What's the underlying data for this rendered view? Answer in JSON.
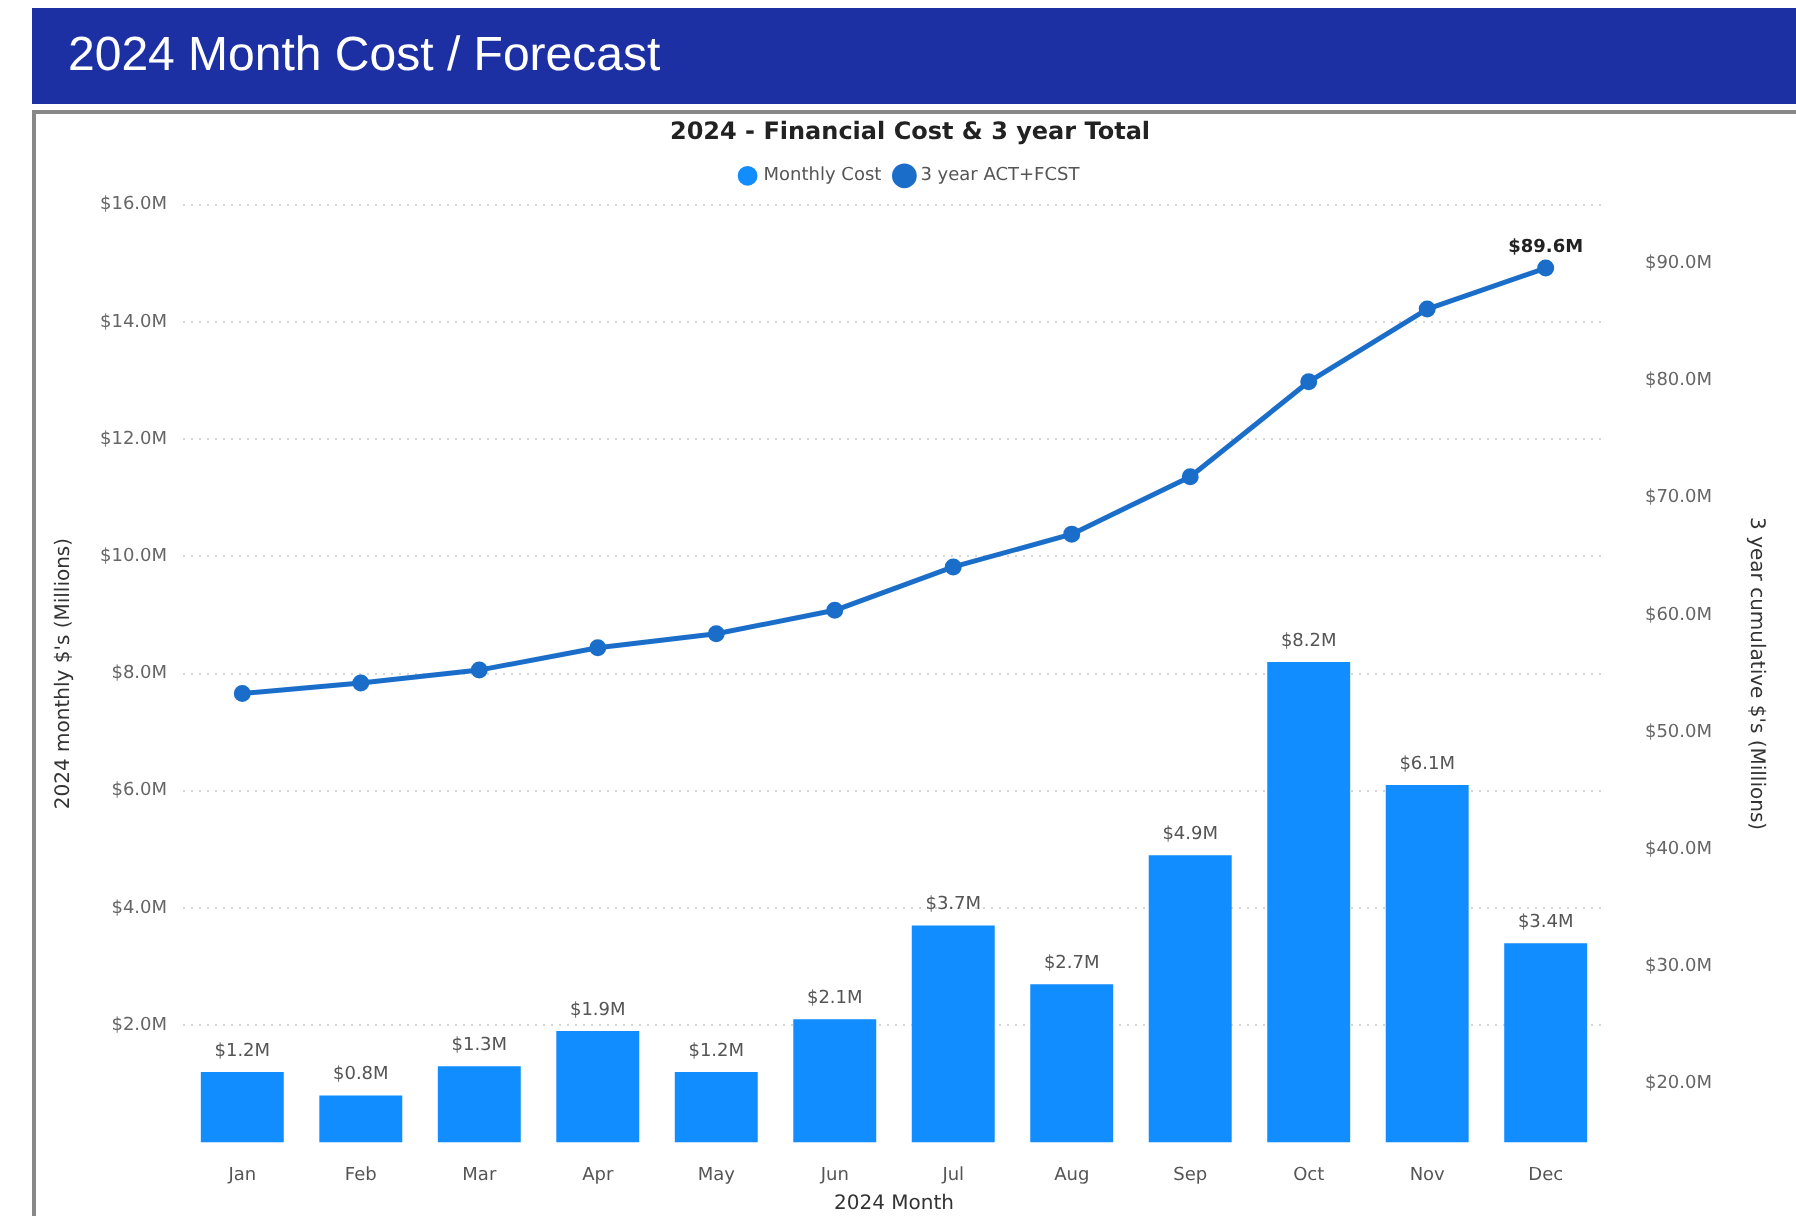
{
  "chart_data": {
    "type": "bar",
    "title": "2024 Month Cost / Forecast",
    "subtitle": "2024 - Financial Cost & 3 year Total",
    "xlabel": "2024 Month",
    "ylabel": "2024 monthly $'s (Millions)",
    "y2label": "3 year cumulative $'s (Millions)",
    "categories": [
      "Jan",
      "Feb",
      "Mar",
      "Apr",
      "May",
      "Jun",
      "Jul",
      "Aug",
      "Sep",
      "Oct",
      "Nov",
      "Dec"
    ],
    "series": [
      {
        "name": "Monthly Cost",
        "color": "#118dff",
        "values": [
          1.2,
          0.8,
          1.3,
          1.9,
          1.2,
          2.1,
          3.7,
          2.7,
          4.9,
          8.2,
          6.1,
          3.4
        ],
        "value_labels": [
          "$1.2M",
          "$0.8M",
          "$1.3M",
          "$1.9M",
          "$1.2M",
          "$2.1M",
          "$3.7M",
          "$2.7M",
          "$4.9M",
          "$8.2M",
          "$6.1M",
          "$3.4M"
        ]
      },
      {
        "name": "3 year ACT+FCST",
        "type": "line",
        "axis": "y2",
        "color": "#1a6ec9",
        "values": [
          53.3,
          54.2,
          55.3,
          57.2,
          58.4,
          60.4,
          64.1,
          66.9,
          71.8,
          79.9,
          86.1,
          89.6
        ],
        "value_labels": [
          null,
          null,
          null,
          null,
          null,
          null,
          null,
          null,
          null,
          null,
          null,
          "$89.6M"
        ]
      }
    ],
    "ylim": [
      0,
      16
    ],
    "yticks": [
      {
        "value": 2,
        "label": "$2.0M"
      },
      {
        "value": 4,
        "label": "$4.0M"
      },
      {
        "value": 6,
        "label": "$6.0M"
      },
      {
        "value": 8,
        "label": "$8.0M"
      },
      {
        "value": 10,
        "label": "$10.0M"
      },
      {
        "value": 12,
        "label": "$12.0M"
      },
      {
        "value": 14,
        "label": "$14.0M"
      },
      {
        "value": 16,
        "label": "$16.0M"
      }
    ],
    "y2lim": [
      15,
      95
    ],
    "y2ticks": [
      {
        "value": 20,
        "label": "$20.0M"
      },
      {
        "value": 30,
        "label": "$30.0M"
      },
      {
        "value": 40,
        "label": "$40.0M"
      },
      {
        "value": 50,
        "label": "$50.0M"
      },
      {
        "value": 60,
        "label": "$60.0M"
      },
      {
        "value": 70,
        "label": "$70.0M"
      },
      {
        "value": 80,
        "label": "$80.0M"
      },
      {
        "value": 90,
        "label": "$90.0M"
      }
    ],
    "grid": "y",
    "legend": "top",
    "marker": "circle",
    "line_style": "solid"
  }
}
